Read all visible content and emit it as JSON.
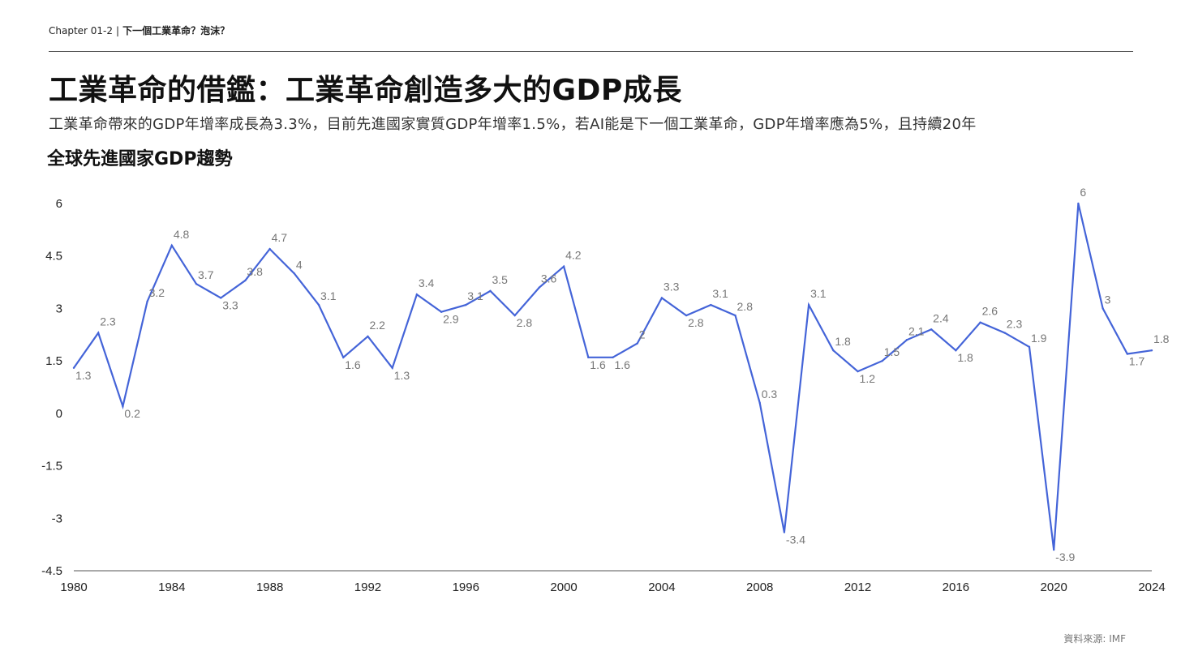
{
  "header": {
    "chapter": "Chapter 01-2",
    "separator": "|",
    "topic": "下一個工業革命？泡沫？"
  },
  "title": "工業革命的借鑑：工業革命創造多大的GDP成長",
  "subtitle": "工業革命帶來的GDP年增率成長為3.3%，目前先進國家實質GDP年增率1.5%，若AI能是下一個工業革命，GDP年增率應為5%，且持續20年",
  "footer": {
    "source": "資料來源: IMF"
  },
  "colors": {
    "line": "#4464d8",
    "axis": "#555555",
    "tick_text": "#222222",
    "data_label": "#777777"
  },
  "chart_data": {
    "type": "line",
    "title": "全球先進國家GDP趨勢",
    "xlabel": "",
    "ylabel": "",
    "x": [
      1980,
      1981,
      1982,
      1983,
      1984,
      1985,
      1986,
      1987,
      1988,
      1989,
      1990,
      1991,
      1992,
      1993,
      1994,
      1995,
      1996,
      1997,
      1998,
      1999,
      2000,
      2001,
      2002,
      2003,
      2004,
      2005,
      2006,
      2007,
      2008,
      2009,
      2010,
      2011,
      2012,
      2013,
      2014,
      2015,
      2016,
      2017,
      2018,
      2019,
      2020,
      2021,
      2022,
      2023,
      2024
    ],
    "series": [
      {
        "values": [
          1.3,
          2.3,
          0.2,
          3.2,
          4.8,
          3.7,
          3.3,
          3.8,
          4.7,
          4,
          3.1,
          1.6,
          2.2,
          1.3,
          3.4,
          2.9,
          3.1,
          3.5,
          2.8,
          3.6,
          4.2,
          1.6,
          1.6,
          2,
          3.3,
          2.8,
          3.1,
          2.8,
          0.3,
          -3.4,
          3.1,
          1.8,
          1.2,
          1.5,
          2.1,
          2.4,
          1.8,
          2.6,
          2.3,
          1.9,
          -3.9,
          6,
          3,
          1.7,
          1.8
        ]
      }
    ],
    "data_labels": [
      "1.3",
      "2.3",
      "0.2",
      "3.2",
      "4.8",
      "3.7",
      "3.3",
      "3.8",
      "4.7",
      "4",
      "3.1",
      "1.6",
      "2.2",
      "1.3",
      "3.4",
      "2.9",
      "3.1",
      "3.5",
      "2.8",
      "3.6",
      "4.2",
      "1.6",
      "1.6",
      "2",
      "3.3",
      "2.8",
      "3.1",
      "2.8",
      "0.3",
      "-3.4",
      "3.1",
      "1.8",
      "1.2",
      "1.5",
      "2.1",
      "2.4",
      "1.8",
      "2.6",
      "2.3",
      "1.9",
      "-3.9",
      "6",
      "3",
      "1.7",
      "1.8"
    ],
    "xlim": [
      1980,
      2024
    ],
    "ylim": [
      -4.5,
      6.5
    ],
    "y_ticks": [
      6,
      4.5,
      3,
      1.5,
      0,
      -1.5,
      -3,
      -4.5
    ],
    "y_tick_labels": [
      "6",
      "4.5",
      "3",
      "1.5",
      "0",
      "-1.5",
      "-3",
      "-4.5"
    ],
    "x_ticks": [
      1980,
      1984,
      1988,
      1992,
      1996,
      2000,
      2004,
      2008,
      2012,
      2016,
      2020,
      2024
    ],
    "x_tick_labels": [
      "1980",
      "1984",
      "1988",
      "1992",
      "1996",
      "2000",
      "2004",
      "2008",
      "2012",
      "2016",
      "2020",
      "2024"
    ],
    "grid": false,
    "legend": "none"
  }
}
